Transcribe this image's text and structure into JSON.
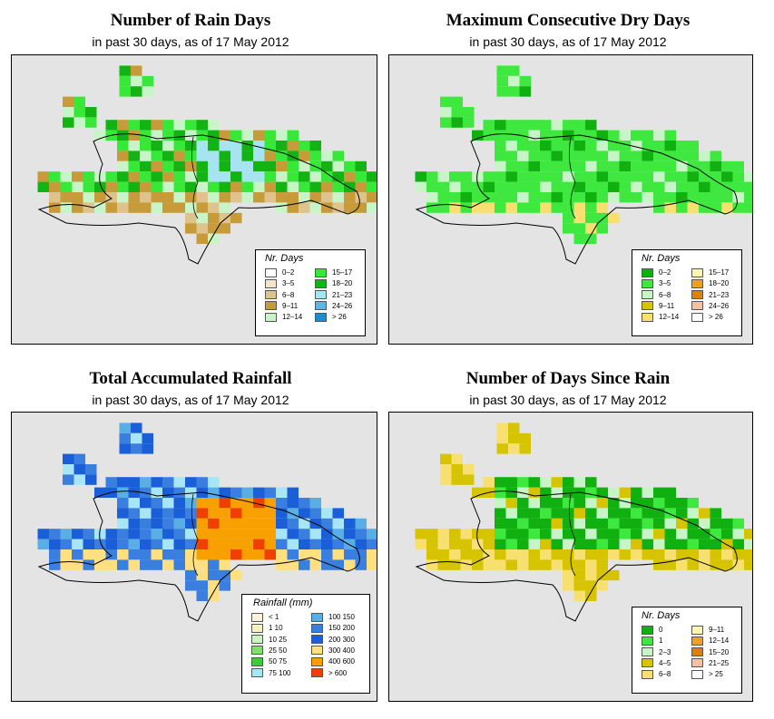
{
  "panels": [
    {
      "title": "Number of Rain Days",
      "subtitle": "in past 30 days, as of  17 May 2012",
      "legend": {
        "title": "Nr. Days",
        "items": [
          {
            "label": "0–2",
            "color": "#ffffff"
          },
          {
            "label": "3–5",
            "color": "#f3e6c6"
          },
          {
            "label": "6–8",
            "color": "#dfc38c"
          },
          {
            "label": "9–11",
            "color": "#c79b3a"
          },
          {
            "label": "12–14",
            "color": "#c8f5c8"
          },
          {
            "label": "15–17",
            "color": "#38e838"
          },
          {
            "label": "18–20",
            "color": "#12b312"
          },
          {
            "label": "21–23",
            "color": "#a6e4f0"
          },
          {
            "label": "24–26",
            "color": "#5fb6e4"
          },
          {
            "label": "> 26",
            "color": "#1a8fd0"
          }
        ]
      }
    },
    {
      "title": "Maximum Consecutive Dry Days",
      "subtitle": "in past 30 days, as of  17 May 2012",
      "legend": {
        "title": "Nr. Days",
        "items": [
          {
            "label": "0–2",
            "color": "#10b010"
          },
          {
            "label": "3–5",
            "color": "#3ee83e"
          },
          {
            "label": "6–8",
            "color": "#c8f5c8"
          },
          {
            "label": "9–11",
            "color": "#d6c400"
          },
          {
            "label": "12–14",
            "color": "#f7e070"
          },
          {
            "label": "15–17",
            "color": "#fff6b0"
          },
          {
            "label": "18–20",
            "color": "#f0a020"
          },
          {
            "label": "21–23",
            "color": "#e08000"
          },
          {
            "label": "24–26",
            "color": "#f8c0a0"
          },
          {
            "label": "> 26",
            "color": "#ffffff"
          }
        ]
      }
    },
    {
      "title": "Total Accumulated Rainfall",
      "subtitle": "in past 30 days, as of  17 May 2012",
      "legend": {
        "title": "Rainfall (mm)",
        "items": [
          {
            "label": "< 1",
            "color": "#fdf1dc"
          },
          {
            "label": "1   10",
            "color": "#f6f1c0"
          },
          {
            "label": "10   25",
            "color": "#c9f5c0"
          },
          {
            "label": "25   50",
            "color": "#7fe070"
          },
          {
            "label": "50   75",
            "color": "#3ec93e"
          },
          {
            "label": "75   100",
            "color": "#a6e6f6"
          },
          {
            "label": "100   150",
            "color": "#5aaee6"
          },
          {
            "label": "150   200",
            "color": "#3a7fe0"
          },
          {
            "label": "200   300",
            "color": "#1a5ed8"
          },
          {
            "label": "300   400",
            "color": "#ffe080"
          },
          {
            "label": "400   600",
            "color": "#f7a000"
          },
          {
            "label": "> 600",
            "color": "#f04000"
          }
        ]
      }
    },
    {
      "title": "Number of Days Since Rain",
      "subtitle": "in past 30 days, as of  17 May 2012",
      "legend": {
        "title": "Nr. Days",
        "items": [
          {
            "label": "0",
            "color": "#10b010"
          },
          {
            "label": "1",
            "color": "#3ee83e"
          },
          {
            "label": "2–3",
            "color": "#c8f5c8"
          },
          {
            "label": "4–5",
            "color": "#d6c400"
          },
          {
            "label": "6–8",
            "color": "#f7e070"
          },
          {
            "label": "9–11",
            "color": "#fff6b0"
          },
          {
            "label": "12–14",
            "color": "#f0a020"
          },
          {
            "label": "15–20",
            "color": "#e08000"
          },
          {
            "label": "21–25",
            "color": "#f8c0a0"
          },
          {
            "label": "> 25",
            "color": "#ffffff"
          }
        ]
      }
    }
  ]
}
